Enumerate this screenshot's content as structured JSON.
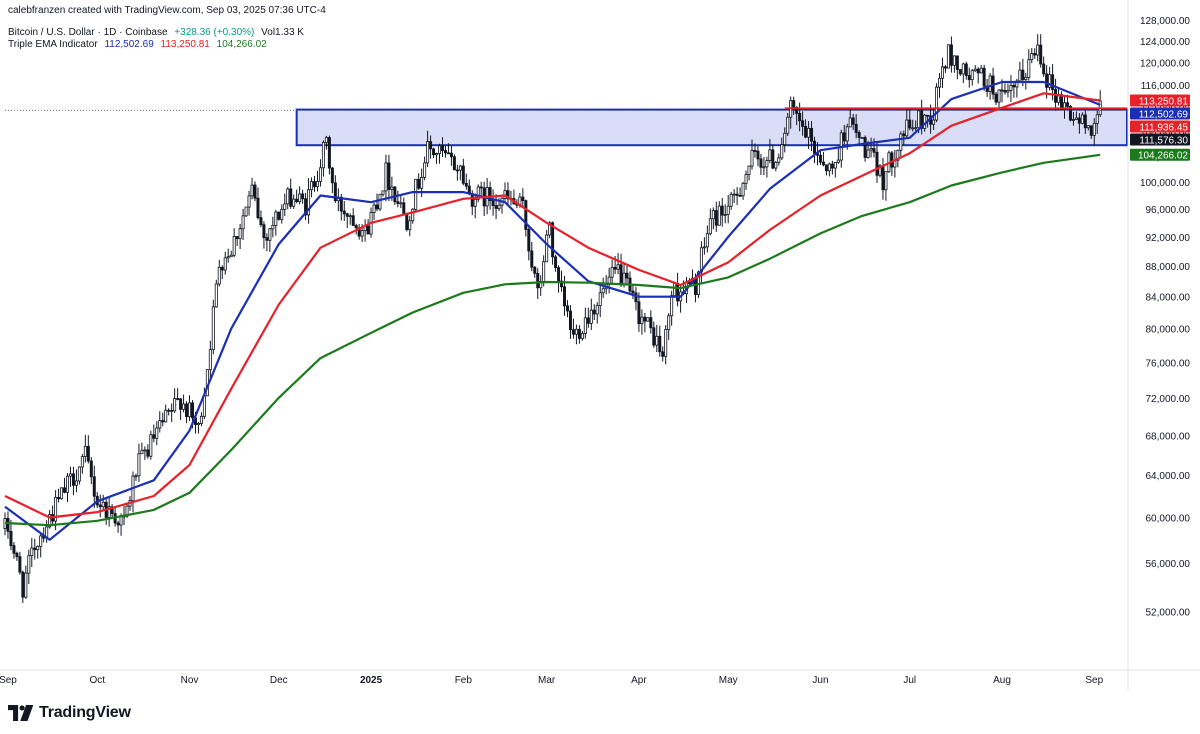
{
  "header": {
    "credit": "calebfranzen created with TradingView.com, Sep 03, 2025 07:36 UTC-4",
    "symbol": "Bitcoin / U.S. Dollar · 1D · Coinbase",
    "change": "+328.36 (+0.30%)",
    "volume": "Vol1.33 K",
    "indicator_name": "Triple EMA Indicator",
    "ema_values": [
      "112,502.69",
      "113,250.81",
      "104,266.02"
    ]
  },
  "brand": {
    "name": "TradingView",
    "icon": "tradingview-logo-icon"
  },
  "colors": {
    "ema_fast": "#1a2fb6",
    "ema_mid": "#e8202a",
    "ema_slow": "#1c7a1c",
    "zone_fill": "#d5d9f5",
    "zone_border": "#1a2fb6",
    "candle": "#131722",
    "price_label": "#131722"
  },
  "chart_data": {
    "type": "candlestick",
    "title": "",
    "xlabel": "",
    "ylabel": "",
    "ylim": [
      48000,
      130000
    ],
    "y_scale": "log",
    "y_ticks": [
      52000,
      56000,
      60000,
      64000,
      68000,
      72000,
      76000,
      80000,
      84000,
      88000,
      92000,
      96000,
      100000,
      104000,
      108000,
      112000,
      116000,
      120000,
      124000,
      128000
    ],
    "y_tick_labels": [
      "52,000.00",
      "56,000.00",
      "60,000.00",
      "64,000.00",
      "68,000.00",
      "72,000.00",
      "76,000.00",
      "80,000.00",
      "84,000.00",
      "88,000.00",
      "92,000.00",
      "96,000.00",
      "100,000.00",
      "104,000.00",
      "108,000.00",
      "112,000.00",
      "116,000.00",
      "120,000.00",
      "124,000.00",
      "128,000.00"
    ],
    "x_range": [
      "2024-08-31",
      "2025-09-12"
    ],
    "x_ticks": [
      "2024-09-01",
      "2024-10-01",
      "2024-11-01",
      "2024-12-01",
      "2025-01-01",
      "2025-02-01",
      "2025-03-01",
      "2025-04-01",
      "2025-05-01",
      "2025-06-01",
      "2025-07-01",
      "2025-08-01",
      "2025-09-01"
    ],
    "x_tick_labels": [
      "Sep",
      "Oct",
      "Nov",
      "Dec",
      "2025",
      "Feb",
      "Mar",
      "Apr",
      "May",
      "Jun",
      "Jul",
      "Aug",
      "Sep"
    ],
    "grid": false,
    "close_points": [
      [
        "2024-09-01",
        59000
      ],
      [
        "2024-09-06",
        54000
      ],
      [
        "2024-09-10",
        57500
      ],
      [
        "2024-09-15",
        60000
      ],
      [
        "2024-09-20",
        62500
      ],
      [
        "2024-09-27",
        65800
      ],
      [
        "2024-10-01",
        61500
      ],
      [
        "2024-10-10",
        59500
      ],
      [
        "2024-10-14",
        64500
      ],
      [
        "2024-10-21",
        68200
      ],
      [
        "2024-10-29",
        72000
      ],
      [
        "2024-11-04",
        68500
      ],
      [
        "2024-11-07",
        75500
      ],
      [
        "2024-11-11",
        88500
      ],
      [
        "2024-11-15",
        90500
      ],
      [
        "2024-11-22",
        98500
      ],
      [
        "2024-11-26",
        92000
      ],
      [
        "2024-12-05",
        98000
      ],
      [
        "2024-12-10",
        96500
      ],
      [
        "2024-12-17",
        106000
      ],
      [
        "2024-12-20",
        97000
      ],
      [
        "2024-12-26",
        95000
      ],
      [
        "2024-12-30",
        92500
      ],
      [
        "2025-01-06",
        101500
      ],
      [
        "2025-01-13",
        94500
      ],
      [
        "2025-01-20",
        105000
      ],
      [
        "2025-01-24",
        104500
      ],
      [
        "2025-01-31",
        102000
      ],
      [
        "2025-02-03",
        98000
      ],
      [
        "2025-02-15",
        97500
      ],
      [
        "2025-02-21",
        96000
      ],
      [
        "2025-02-26",
        84000
      ],
      [
        "2025-03-02",
        94000
      ],
      [
        "2025-03-04",
        86500
      ],
      [
        "2025-03-10",
        79000
      ],
      [
        "2025-03-18",
        83500
      ],
      [
        "2025-03-25",
        87500
      ],
      [
        "2025-03-31",
        82500
      ],
      [
        "2025-04-07",
        78500
      ],
      [
        "2025-04-09",
        76500
      ],
      [
        "2025-04-12",
        84500
      ],
      [
        "2025-04-20",
        85500
      ],
      [
        "2025-04-25",
        94500
      ],
      [
        "2025-05-02",
        96500
      ],
      [
        "2025-05-09",
        103500
      ],
      [
        "2025-05-17",
        103500
      ],
      [
        "2025-05-22",
        111500
      ],
      [
        "2025-05-31",
        104500
      ],
      [
        "2025-06-05",
        101500
      ],
      [
        "2025-06-10",
        110000
      ],
      [
        "2025-06-17",
        104500
      ],
      [
        "2025-06-22",
        100500
      ],
      [
        "2025-06-28",
        107500
      ],
      [
        "2025-07-03",
        109500
      ],
      [
        "2025-07-09",
        111000
      ],
      [
        "2025-07-11",
        117500
      ],
      [
        "2025-07-14",
        121500
      ],
      [
        "2025-07-20",
        117500
      ],
      [
        "2025-07-25",
        117500
      ],
      [
        "2025-08-02",
        113000
      ],
      [
        "2025-08-08",
        117500
      ],
      [
        "2025-08-13",
        123500
      ],
      [
        "2025-08-16",
        117500
      ],
      [
        "2025-08-20",
        113500
      ],
      [
        "2025-08-25",
        110500
      ],
      [
        "2025-08-30",
        108500
      ],
      [
        "2025-09-03",
        111576
      ]
    ],
    "series": [
      {
        "name": "EMA",
        "color": "#1a2fb6",
        "last": 112502.69,
        "values": [
          [
            "2024-08-31",
            61000
          ],
          [
            "2024-09-15",
            58000
          ],
          [
            "2024-10-01",
            61500
          ],
          [
            "2024-10-20",
            63500
          ],
          [
            "2024-11-01",
            68500
          ],
          [
            "2024-11-15",
            80000
          ],
          [
            "2024-12-01",
            91000
          ],
          [
            "2024-12-15",
            98000
          ],
          [
            "2025-01-01",
            97000
          ],
          [
            "2025-01-15",
            98500
          ],
          [
            "2025-02-01",
            98500
          ],
          [
            "2025-02-15",
            97000
          ],
          [
            "2025-03-01",
            91000
          ],
          [
            "2025-03-15",
            86000
          ],
          [
            "2025-04-01",
            84000
          ],
          [
            "2025-04-15",
            84000
          ],
          [
            "2025-05-01",
            92000
          ],
          [
            "2025-05-15",
            99000
          ],
          [
            "2025-06-01",
            105000
          ],
          [
            "2025-06-15",
            106000
          ],
          [
            "2025-07-01",
            107000
          ],
          [
            "2025-07-15",
            113500
          ],
          [
            "2025-08-01",
            116500
          ],
          [
            "2025-08-15",
            116500
          ],
          [
            "2025-09-03",
            112502.69
          ]
        ]
      },
      {
        "name": "EMA",
        "color": "#e8202a",
        "last": 113250.81,
        "values": [
          [
            "2024-08-31",
            62000
          ],
          [
            "2024-09-15",
            60000
          ],
          [
            "2024-10-01",
            60500
          ],
          [
            "2024-10-20",
            62000
          ],
          [
            "2024-11-01",
            65000
          ],
          [
            "2024-11-15",
            73000
          ],
          [
            "2024-12-01",
            83000
          ],
          [
            "2024-12-15",
            90500
          ],
          [
            "2025-01-01",
            94000
          ],
          [
            "2025-01-15",
            95500
          ],
          [
            "2025-02-01",
            97500
          ],
          [
            "2025-02-15",
            98000
          ],
          [
            "2025-03-01",
            94000
          ],
          [
            "2025-03-15",
            90500
          ],
          [
            "2025-04-01",
            87500
          ],
          [
            "2025-04-15",
            85500
          ],
          [
            "2025-05-01",
            88500
          ],
          [
            "2025-05-15",
            93000
          ],
          [
            "2025-06-01",
            98000
          ],
          [
            "2025-06-15",
            101000
          ],
          [
            "2025-07-01",
            104500
          ],
          [
            "2025-07-15",
            109000
          ],
          [
            "2025-08-01",
            112000
          ],
          [
            "2025-08-15",
            114500
          ],
          [
            "2025-09-03",
            113250.81
          ]
        ]
      },
      {
        "name": "EMA",
        "color": "#1c7a1c",
        "last": 104266.02,
        "values": [
          [
            "2024-08-31",
            59500
          ],
          [
            "2024-09-15",
            59300
          ],
          [
            "2024-10-01",
            59700
          ],
          [
            "2024-10-20",
            60700
          ],
          [
            "2024-11-01",
            62300
          ],
          [
            "2024-11-15",
            66500
          ],
          [
            "2024-12-01",
            72000
          ],
          [
            "2024-12-15",
            76500
          ],
          [
            "2025-01-01",
            79500
          ],
          [
            "2025-01-15",
            82000
          ],
          [
            "2025-02-01",
            84500
          ],
          [
            "2025-02-15",
            85600
          ],
          [
            "2025-03-01",
            85900
          ],
          [
            "2025-03-15",
            85800
          ],
          [
            "2025-04-01",
            85500
          ],
          [
            "2025-04-15",
            85100
          ],
          [
            "2025-05-01",
            86500
          ],
          [
            "2025-05-15",
            89000
          ],
          [
            "2025-06-01",
            92500
          ],
          [
            "2025-06-15",
            95000
          ],
          [
            "2025-07-01",
            97000
          ],
          [
            "2025-07-15",
            99500
          ],
          [
            "2025-08-01",
            101500
          ],
          [
            "2025-08-15",
            103000
          ],
          [
            "2025-09-03",
            104266.02
          ]
        ]
      }
    ],
    "zone": {
      "x_start": "2024-12-07",
      "x_end": "2025-09-12",
      "y_low": 105800,
      "y_high": 111700
    },
    "resistance_line": {
      "x_start": "2025-05-20",
      "y": 111936.45
    },
    "last_price_line": 111576.3,
    "price_labels": [
      {
        "value": 113250.81,
        "text": "113,250.81",
        "color": "#e8202a"
      },
      {
        "value": 112502.69,
        "text": "112,502.69",
        "color": "#1a2fb6"
      },
      {
        "value": 111936.45,
        "text": "111,936.45",
        "color": "#e8202a"
      },
      {
        "value": 111576.3,
        "text": "111,576.30",
        "color": "#131722"
      },
      {
        "value": 104266.02,
        "text": "104,266.02",
        "color": "#1c7a1c"
      }
    ]
  }
}
